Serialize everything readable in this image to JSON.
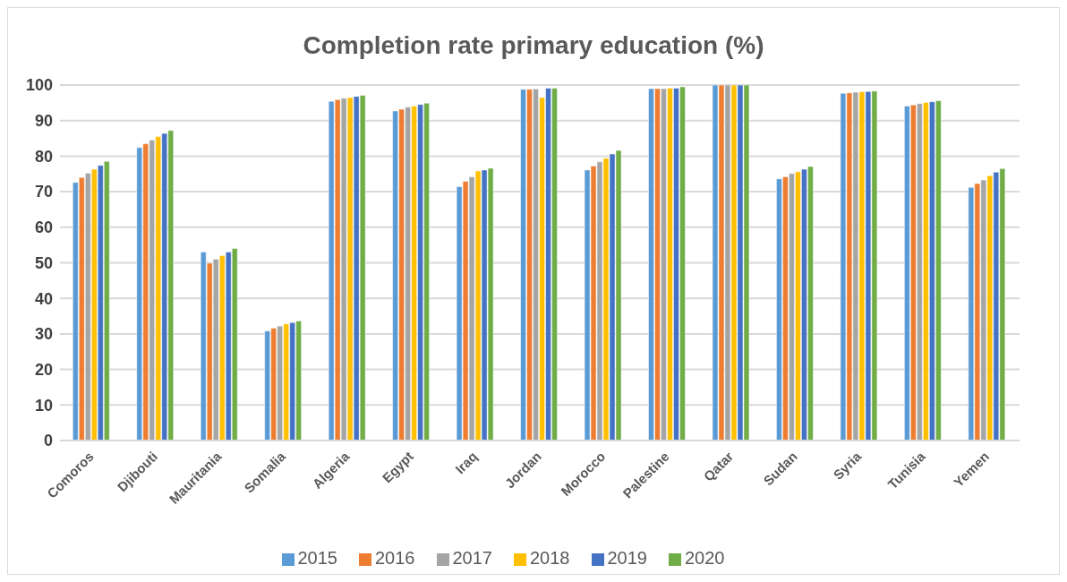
{
  "chart_data": {
    "type": "bar",
    "title": "Completion rate primary education (%)",
    "categories": [
      "Comoros",
      "Djibouti",
      "Mauritania",
      "Somalia",
      "Algeria",
      "Egypt",
      "Iraq",
      "Jordan",
      "Morocco",
      "Palestine",
      "Qatar",
      "Sudan",
      "Syria",
      "Tunisia",
      "Yemen"
    ],
    "series": [
      {
        "name": "2015",
        "color": "#5b9bd5",
        "values": [
          72.6,
          82.4,
          53,
          30.8,
          95.4,
          92.7,
          71.4,
          98.8,
          76.1,
          99,
          100,
          73.6,
          97.7,
          94.1,
          71.2
        ]
      },
      {
        "name": "2016",
        "color": "#ed7d31",
        "values": [
          74,
          83.5,
          49.9,
          31.6,
          95.9,
          93.2,
          72.9,
          98.8,
          77.2,
          99,
          100,
          74.2,
          97.8,
          94.4,
          72.3
        ]
      },
      {
        "name": "2017",
        "color": "#a5a5a5",
        "values": [
          75.2,
          84.5,
          51,
          32.2,
          96.3,
          93.8,
          74.2,
          98.9,
          78.4,
          99,
          100,
          75.1,
          98,
          94.8,
          73.3
        ]
      },
      {
        "name": "2018",
        "color": "#ffc000",
        "values": [
          76.3,
          85.5,
          52,
          32.8,
          96.5,
          94.1,
          75.8,
          96.5,
          79.4,
          99.1,
          100,
          75.6,
          98.1,
          95.1,
          74.5
        ]
      },
      {
        "name": "2019",
        "color": "#4472c4",
        "values": [
          77.4,
          86.4,
          53,
          33.2,
          96.8,
          94.5,
          76.1,
          99.1,
          80.6,
          99.1,
          100,
          76.3,
          98.2,
          95.3,
          75.5
        ]
      },
      {
        "name": "2020",
        "color": "#70ad47",
        "values": [
          78.5,
          87.2,
          54,
          33.6,
          97.1,
          94.9,
          76.6,
          99.1,
          81.6,
          99.5,
          100,
          77.1,
          98.3,
          95.6,
          76.5
        ]
      }
    ],
    "ylim": [
      0,
      100
    ],
    "yticks": [
      0,
      10,
      20,
      30,
      40,
      50,
      60,
      70,
      80,
      90,
      100
    ],
    "grid": "y",
    "legend": "bottom"
  }
}
